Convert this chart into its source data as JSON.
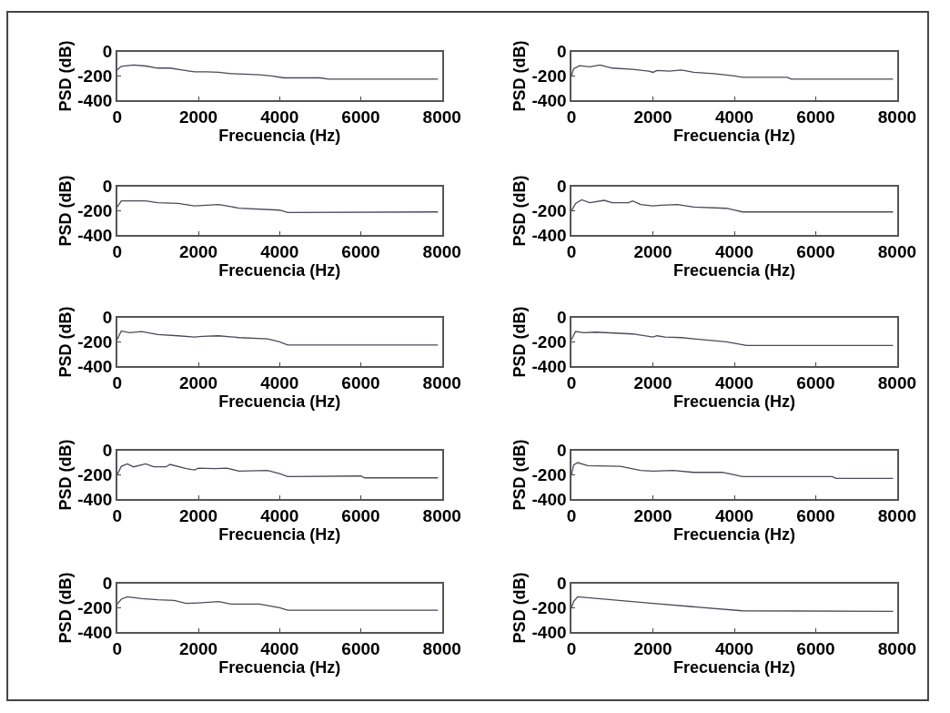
{
  "chart_data": [
    {
      "type": "line",
      "xlabel": "Frecuencia (Hz)",
      "ylabel": "PSD (dB)",
      "xlim": [
        0,
        8000
      ],
      "ylim": [
        -400,
        0
      ],
      "xticks": [
        0,
        2000,
        4000,
        6000,
        8000
      ],
      "yticks": [
        0,
        -200,
        -400
      ],
      "series": [
        {
          "color": "#4a4a5a",
          "x": [
            0,
            100,
            400,
            700,
            1000,
            1300,
            1600,
            1900,
            2200,
            2500,
            2800,
            3100,
            3500,
            3800,
            4100,
            4500,
            5000,
            5200,
            6000,
            7000,
            7900
          ],
          "values": [
            -150,
            -120,
            -110,
            -118,
            -135,
            -135,
            -150,
            -165,
            -165,
            -170,
            -180,
            -185,
            -190,
            -200,
            -215,
            -215,
            -215,
            -225,
            -225,
            -225,
            -225
          ]
        }
      ]
    },
    {
      "type": "line",
      "xlabel": "Frecuencia (Hz)",
      "ylabel": "PSD (dB)",
      "xlim": [
        0,
        8000
      ],
      "ylim": [
        -400,
        0
      ],
      "xticks": [
        0,
        2000,
        4000,
        6000,
        8000
      ],
      "yticks": [
        0,
        -200,
        -400
      ],
      "series": [
        {
          "color": "#4a4a5a",
          "x": [
            0,
            50,
            200,
            450,
            700,
            1000,
            1500,
            1900,
            2000,
            2100,
            2400,
            2700,
            3000,
            3500,
            4000,
            4200,
            5300,
            5400,
            7900
          ],
          "values": [
            -200,
            -140,
            -115,
            -125,
            -110,
            -135,
            -145,
            -160,
            -170,
            -155,
            -160,
            -150,
            -170,
            -180,
            -200,
            -210,
            -210,
            -225,
            -225
          ]
        }
      ]
    },
    {
      "type": "line",
      "xlabel": "Frecuencia (Hz)",
      "ylabel": "PSD (dB)",
      "xlim": [
        0,
        8000
      ],
      "ylim": [
        -400,
        0
      ],
      "xticks": [
        0,
        2000,
        4000,
        6000,
        8000
      ],
      "yticks": [
        0,
        -200,
        -400
      ],
      "series": [
        {
          "color": "#4a4a5a",
          "x": [
            0,
            100,
            700,
            1000,
            1500,
            1900,
            2500,
            2700,
            3000,
            4000,
            4200,
            7900
          ],
          "values": [
            -170,
            -120,
            -120,
            -135,
            -140,
            -160,
            -150,
            -160,
            -180,
            -195,
            -215,
            -210
          ]
        }
      ]
    },
    {
      "type": "line",
      "xlabel": "Frecuencia (Hz)",
      "ylabel": "PSD (dB)",
      "xlim": [
        0,
        8000
      ],
      "ylim": [
        -400,
        0
      ],
      "xticks": [
        0,
        2000,
        4000,
        6000,
        8000
      ],
      "yticks": [
        0,
        -200,
        -400
      ],
      "series": [
        {
          "color": "#4a4a5a",
          "x": [
            0,
            100,
            250,
            450,
            800,
            1000,
            1400,
            1500,
            1700,
            2000,
            2200,
            2600,
            3000,
            3800,
            4000,
            4200,
            7900
          ],
          "values": [
            -200,
            -140,
            -110,
            -135,
            -115,
            -135,
            -135,
            -120,
            -150,
            -160,
            -155,
            -150,
            -170,
            -180,
            -195,
            -210,
            -210
          ]
        }
      ]
    },
    {
      "type": "line",
      "xlabel": "Frecuencia (Hz)",
      "ylabel": "PSD (dB)",
      "xlim": [
        0,
        8000
      ],
      "ylim": [
        -400,
        0
      ],
      "xticks": [
        0,
        2000,
        4000,
        6000,
        8000
      ],
      "yticks": [
        0,
        -200,
        -400
      ],
      "series": [
        {
          "color": "#4a4a5a",
          "x": [
            0,
            100,
            300,
            600,
            1000,
            1500,
            1900,
            2100,
            2500,
            3000,
            3700,
            4000,
            4200,
            7900
          ],
          "values": [
            -180,
            -110,
            -125,
            -115,
            -140,
            -150,
            -160,
            -155,
            -150,
            -165,
            -175,
            -200,
            -225,
            -225
          ]
        }
      ]
    },
    {
      "type": "line",
      "xlabel": "Frecuencia (Hz)",
      "ylabel": "PSD (dB)",
      "xlim": [
        0,
        8000
      ],
      "ylim": [
        -400,
        0
      ],
      "xticks": [
        0,
        2000,
        4000,
        6000,
        8000
      ],
      "yticks": [
        0,
        -200,
        -400
      ],
      "series": [
        {
          "color": "#4a4a5a",
          "x": [
            0,
            100,
            300,
            600,
            1500,
            2000,
            2100,
            2300,
            2700,
            3000,
            3800,
            4300,
            7900
          ],
          "values": [
            -180,
            -115,
            -125,
            -120,
            -135,
            -160,
            -150,
            -160,
            -165,
            -175,
            -200,
            -230,
            -230
          ]
        }
      ]
    },
    {
      "type": "line",
      "xlabel": "Frecuencia (Hz)",
      "ylabel": "PSD (dB)",
      "xlim": [
        0,
        8000
      ],
      "ylim": [
        -400,
        0
      ],
      "xticks": [
        0,
        2000,
        4000,
        6000,
        8000
      ],
      "yticks": [
        0,
        -200,
        -400
      ],
      "series": [
        {
          "color": "#4a4a5a",
          "x": [
            0,
            100,
            250,
            400,
            700,
            900,
            1200,
            1300,
            1700,
            1900,
            2000,
            2400,
            2700,
            3000,
            3700,
            4000,
            4200,
            6000,
            6100,
            7900
          ],
          "values": [
            -200,
            -130,
            -110,
            -135,
            -110,
            -135,
            -135,
            -115,
            -150,
            -160,
            -145,
            -150,
            -145,
            -170,
            -165,
            -190,
            -215,
            -210,
            -225,
            -225
          ]
        }
      ]
    },
    {
      "type": "line",
      "xlabel": "Frecuencia (Hz)",
      "ylabel": "PSD (dB)",
      "xlim": [
        0,
        8000
      ],
      "ylim": [
        -400,
        0
      ],
      "xticks": [
        0,
        2000,
        4000,
        6000,
        8000
      ],
      "yticks": [
        0,
        -200,
        -400
      ],
      "series": [
        {
          "color": "#4a4a5a",
          "x": [
            0,
            50,
            150,
            400,
            1200,
            1700,
            2000,
            2500,
            3000,
            3700,
            4000,
            4200,
            6400,
            6500,
            7900
          ],
          "values": [
            -200,
            -120,
            -100,
            -125,
            -130,
            -165,
            -170,
            -165,
            -180,
            -180,
            -200,
            -215,
            -215,
            -230,
            -230
          ]
        }
      ]
    },
    {
      "type": "line",
      "xlabel": "Frecuencia (Hz)",
      "ylabel": "PSD (dB)",
      "xlim": [
        0,
        8000
      ],
      "ylim": [
        -400,
        0
      ],
      "xticks": [
        0,
        2000,
        4000,
        6000,
        8000
      ],
      "yticks": [
        0,
        -200,
        -400
      ],
      "series": [
        {
          "color": "#4a4a5a",
          "x": [
            0,
            100,
            250,
            600,
            1000,
            1400,
            1700,
            2000,
            2500,
            2800,
            3500,
            4000,
            4200,
            7900
          ],
          "values": [
            -170,
            -130,
            -110,
            -125,
            -135,
            -140,
            -165,
            -160,
            -150,
            -170,
            -170,
            -200,
            -220,
            -220
          ]
        }
      ]
    },
    {
      "type": "line",
      "xlabel": "Frecuencia (Hz)",
      "ylabel": "PSD (dB)",
      "xlim": [
        0,
        8000
      ],
      "ylim": [
        -400,
        0
      ],
      "xticks": [
        0,
        2000,
        4000,
        6000,
        8000
      ],
      "yticks": [
        0,
        -200,
        -400
      ],
      "series": [
        {
          "color": "#4a4a5a",
          "x": [
            0,
            50,
            150,
            2000,
            4200,
            7900
          ],
          "values": [
            -200,
            -150,
            -110,
            -165,
            -225,
            -230
          ]
        }
      ]
    }
  ]
}
